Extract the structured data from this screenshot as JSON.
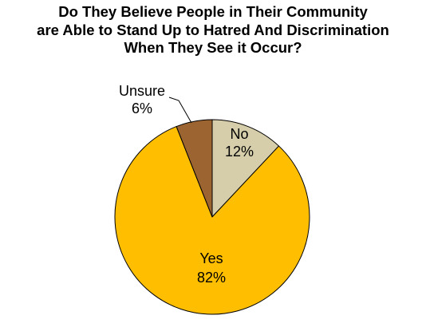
{
  "title_lines": [
    "Do They Believe People in Their Community",
    "are Able to Stand Up to Hatred And Discrimination",
    "When They See it Occur?"
  ],
  "chart_data": {
    "type": "pie",
    "title": "Do They Believe People in Their Community are Able to Stand Up to Hatred And Discrimination When They See it Occur?",
    "categories": [
      "No",
      "Yes",
      "Unsure"
    ],
    "values": [
      12,
      82,
      6
    ],
    "value_labels": [
      "12%",
      "82%",
      "6%"
    ],
    "colors": [
      "#d6ceaa",
      "#ffbe00",
      "#9c6430"
    ],
    "start_angle_deg": 0,
    "direction": "clockwise",
    "legend": "none"
  }
}
